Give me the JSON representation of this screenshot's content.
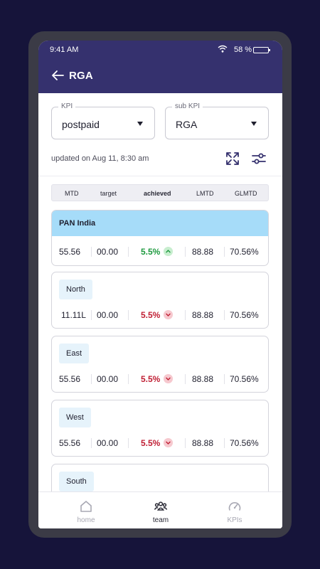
{
  "status_bar": {
    "time": "9:41 AM",
    "battery": "58 %"
  },
  "app_bar": {
    "title": "RGA"
  },
  "filters": {
    "kpi": {
      "label": "KPI",
      "value": "postpaid"
    },
    "sub_kpi": {
      "label": "sub KPI",
      "value": "RGA"
    }
  },
  "updated_text": "updated on Aug 11, 8:30 am",
  "columns": [
    "MTD",
    "target",
    "achieved",
    "LMTD",
    "GLMTD"
  ],
  "pan_india": {
    "name": "PAN India",
    "mtd": "55.56",
    "target": "00.00",
    "achieved": "5.5%",
    "trend": "up",
    "lmtd": "88.88",
    "glmtd": "70.56%"
  },
  "regions": [
    {
      "name": "North",
      "mtd": "11.11L",
      "target": "00.00",
      "achieved": "5.5%",
      "trend": "down",
      "lmtd": "88.88",
      "glmtd": "70.56%"
    },
    {
      "name": "East",
      "mtd": "55.56",
      "target": "00.00",
      "achieved": "5.5%",
      "trend": "down",
      "lmtd": "88.88",
      "glmtd": "70.56%"
    },
    {
      "name": "West",
      "mtd": "55.56",
      "target": "00.00",
      "achieved": "5.5%",
      "trend": "down",
      "lmtd": "88.88",
      "glmtd": "70.56%"
    },
    {
      "name": "South"
    }
  ],
  "bottom_nav": [
    {
      "label": "home",
      "icon": "home-icon",
      "active": false
    },
    {
      "label": "team",
      "icon": "team-icon",
      "active": true
    },
    {
      "label": "KPIs",
      "icon": "speedometer-icon",
      "active": false
    }
  ],
  "colors": {
    "header": "#35316e",
    "background": "#16143a",
    "pan_highlight": "#a6dcf9",
    "positive": "#1e9a3f",
    "negative": "#c01f34"
  }
}
